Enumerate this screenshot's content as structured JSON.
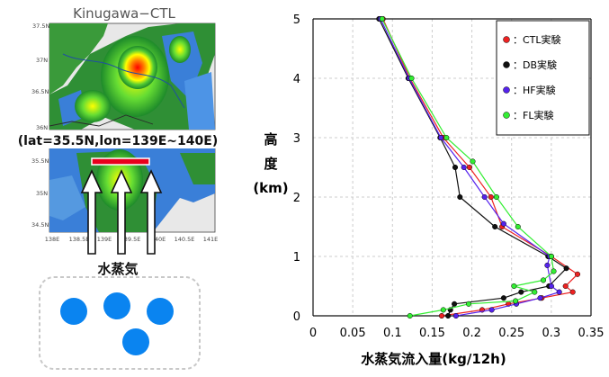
{
  "map_panel": {
    "title": "Kinugawa−CTL",
    "lat_ticks": [
      "37.5N",
      "37N",
      "36.5N",
      "36N",
      "35.5N",
      "35N",
      "34.5N"
    ],
    "lon_ticks": [
      "138E",
      "138.5E",
      "139E",
      "139.5E",
      "140E",
      "140.5E",
      "141E"
    ],
    "line_caption": "(lat=35.5N,lon=139E~140E)",
    "vapor_label": "水蒸気",
    "colors": {
      "line": "#e8001c",
      "drop": "#0a84f0",
      "box_border": "#c8c8c8"
    }
  },
  "chart_data": {
    "type": "line",
    "xlabel": "水蒸気流入量(kg/12h)",
    "ylabel": "高度(km)",
    "xlim": [
      0,
      0.35
    ],
    "ylim": [
      0,
      5
    ],
    "x_ticks": [
      "0",
      "0.05",
      "0.1",
      "0.15",
      "0.2",
      "0.25",
      "0.3",
      "0.35"
    ],
    "y_ticks": [
      "0",
      "1",
      "2",
      "3",
      "4",
      "5"
    ],
    "grid": true,
    "legend_position": "top-right",
    "series": [
      {
        "name": "：CTL実験",
        "color": "#ee2222",
        "points": [
          [
            0.162,
            0.0
          ],
          [
            0.213,
            0.1
          ],
          [
            0.246,
            0.2
          ],
          [
            0.288,
            0.3
          ],
          [
            0.327,
            0.4
          ],
          [
            0.318,
            0.5
          ],
          [
            0.333,
            0.7
          ],
          [
            0.3,
            1.0
          ],
          [
            0.238,
            1.5
          ],
          [
            0.224,
            2.0
          ],
          [
            0.197,
            2.5
          ],
          [
            0.164,
            3.0
          ],
          [
            0.122,
            4.0
          ],
          [
            0.088,
            5.0
          ]
        ]
      },
      {
        "name": "：DB実験",
        "color": "#111111",
        "points": [
          [
            0.17,
            0.0
          ],
          [
            0.173,
            0.1
          ],
          [
            0.178,
            0.2
          ],
          [
            0.24,
            0.3
          ],
          [
            0.262,
            0.4
          ],
          [
            0.297,
            0.5
          ],
          [
            0.319,
            0.8
          ],
          [
            0.296,
            1.0
          ],
          [
            0.229,
            1.5
          ],
          [
            0.185,
            2.0
          ],
          [
            0.179,
            2.5
          ],
          [
            0.16,
            3.0
          ],
          [
            0.12,
            4.0
          ],
          [
            0.083,
            5.0
          ]
        ]
      },
      {
        "name": "：HF実験",
        "color": "#5522ee",
        "points": [
          [
            0.18,
            0.0
          ],
          [
            0.225,
            0.1
          ],
          [
            0.256,
            0.2
          ],
          [
            0.286,
            0.3
          ],
          [
            0.31,
            0.4
          ],
          [
            0.3,
            0.5
          ],
          [
            0.295,
            0.85
          ],
          [
            0.298,
            1.0
          ],
          [
            0.24,
            1.55
          ],
          [
            0.216,
            2.0
          ],
          [
            0.19,
            2.5
          ],
          [
            0.161,
            3.0
          ],
          [
            0.121,
            4.0
          ],
          [
            0.085,
            5.0
          ]
        ]
      },
      {
        "name": "：FL実験",
        "color": "#33ee33",
        "points": [
          [
            0.122,
            0.0
          ],
          [
            0.164,
            0.1
          ],
          [
            0.196,
            0.2
          ],
          [
            0.255,
            0.25
          ],
          [
            0.279,
            0.4
          ],
          [
            0.253,
            0.5
          ],
          [
            0.29,
            0.6
          ],
          [
            0.303,
            0.75
          ],
          [
            0.3,
            1.0
          ],
          [
            0.258,
            1.5
          ],
          [
            0.231,
            2.0
          ],
          [
            0.201,
            2.6
          ],
          [
            0.168,
            3.0
          ],
          [
            0.124,
            4.0
          ],
          [
            0.087,
            5.0
          ]
        ]
      }
    ]
  }
}
